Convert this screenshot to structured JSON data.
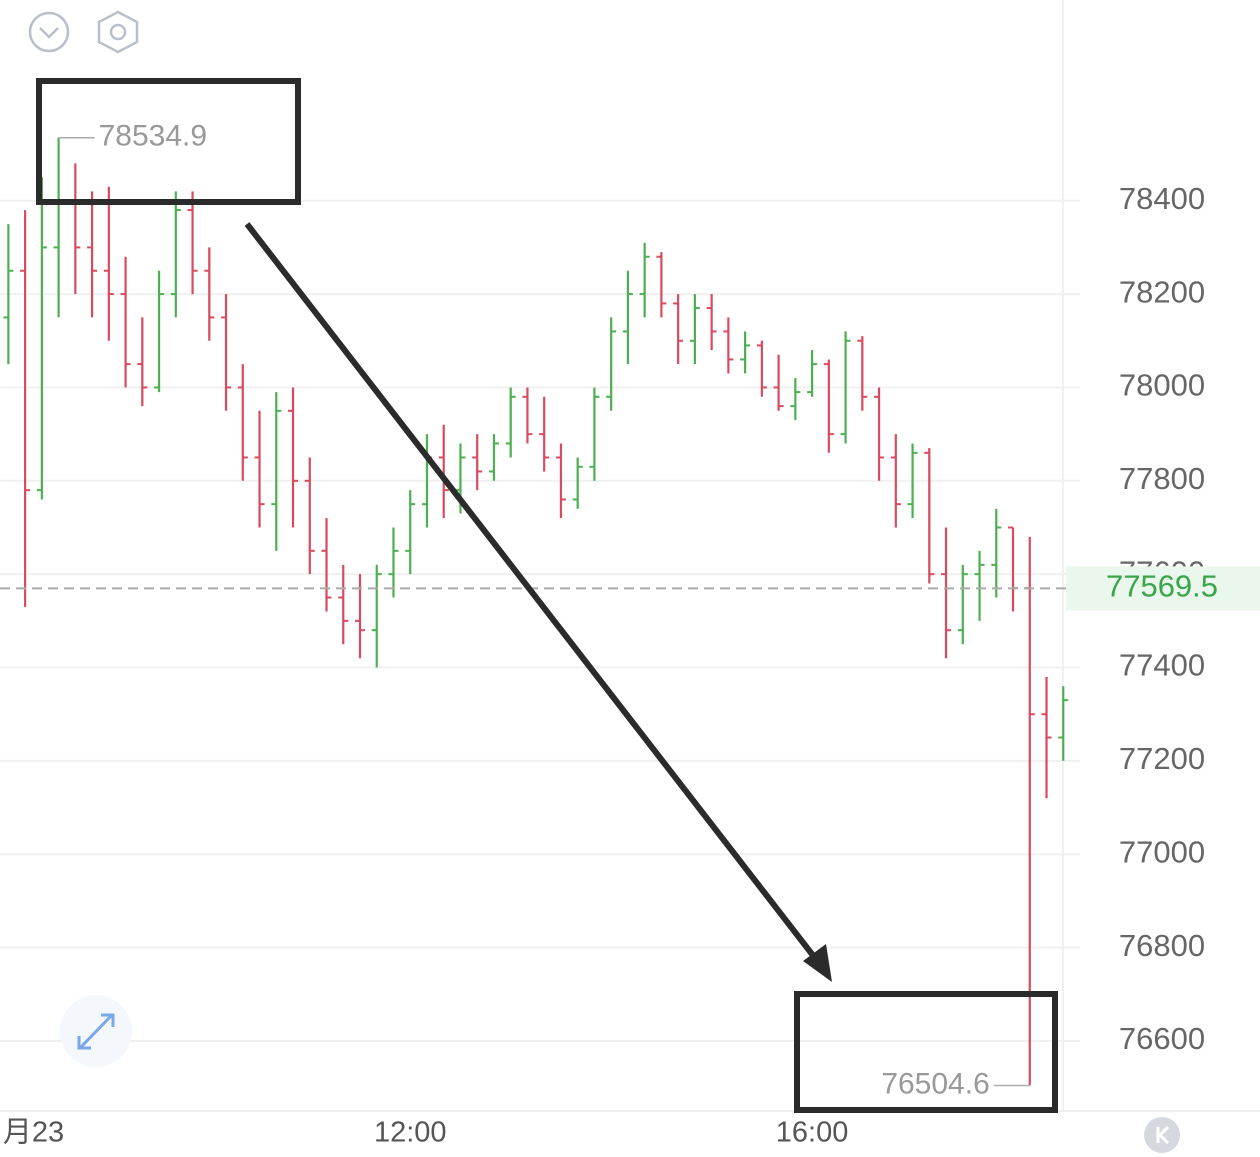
{
  "chart_data": {
    "type": "ohlc",
    "x": [
      480,
      490,
      500,
      510,
      520,
      530,
      540,
      550,
      560,
      570,
      580,
      590,
      600,
      610,
      620,
      630,
      640,
      650,
      660,
      670,
      680,
      690,
      700,
      710,
      720,
      730,
      740,
      750,
      760,
      770,
      780,
      790,
      800,
      810,
      820,
      830,
      840,
      850,
      860,
      870,
      880,
      890,
      900,
      910,
      920,
      930,
      940,
      950,
      960,
      970,
      980,
      990,
      1000,
      1010,
      1020,
      1030,
      1040,
      1050,
      1060,
      1070,
      1080,
      1090,
      1100,
      1110
    ],
    "open": [
      78150,
      78250,
      77780,
      78300,
      78400,
      78300,
      78250,
      78200,
      78050,
      78000,
      78200,
      78380,
      78250,
      78150,
      78000,
      77850,
      77750,
      77950,
      77800,
      77650,
      77550,
      77500,
      77480,
      77600,
      77650,
      77750,
      77850,
      77780,
      77850,
      77820,
      77880,
      77980,
      77900,
      77850,
      77760,
      77830,
      77980,
      78120,
      78200,
      78280,
      78180,
      78100,
      78170,
      78120,
      78060,
      78090,
      78000,
      77960,
      77990,
      78050,
      77900,
      78100,
      77980,
      77850,
      77750,
      77860,
      77600,
      77480,
      77600,
      77620,
      77700,
      77570,
      77300,
      77250
    ],
    "high": [
      78350,
      78380,
      78450,
      78534.9,
      78480,
      78420,
      78430,
      78280,
      78150,
      78250,
      78420,
      78420,
      78300,
      78200,
      78050,
      77950,
      77990,
      78000,
      77850,
      77720,
      77620,
      77600,
      77620,
      77700,
      77780,
      77900,
      77920,
      77880,
      77900,
      77900,
      78000,
      78000,
      77980,
      77880,
      77850,
      78000,
      78150,
      78250,
      78310,
      78290,
      78200,
      78200,
      78200,
      78150,
      78120,
      78100,
      78070,
      78020,
      78080,
      78060,
      78120,
      78110,
      78000,
      77900,
      77880,
      77870,
      77700,
      77620,
      77650,
      77740,
      77700,
      77680,
      77380,
      77360
    ],
    "low": [
      78050,
      77530,
      77760,
      78150,
      78200,
      78150,
      78100,
      78000,
      77960,
      77990,
      78150,
      78200,
      78100,
      77950,
      77800,
      77700,
      77650,
      77700,
      77600,
      77520,
      77450,
      77420,
      77400,
      77550,
      77600,
      77700,
      77720,
      77730,
      77780,
      77800,
      77850,
      77880,
      77820,
      77720,
      77740,
      77800,
      77950,
      78050,
      78150,
      78150,
      78050,
      78050,
      78080,
      78030,
      78030,
      77980,
      77950,
      77930,
      77980,
      77860,
      77880,
      77950,
      77800,
      77700,
      77720,
      77580,
      77420,
      77450,
      77500,
      77550,
      77520,
      76504.6,
      77120,
      77200
    ],
    "close": [
      78250,
      77780,
      78300,
      78400,
      78300,
      78250,
      78200,
      78050,
      78000,
      78200,
      78380,
      78250,
      78150,
      78000,
      77850,
      77750,
      77950,
      77800,
      77650,
      77550,
      77500,
      77480,
      77600,
      77650,
      77750,
      77850,
      77780,
      77850,
      77820,
      77880,
      77980,
      77900,
      77850,
      77760,
      77830,
      77980,
      78120,
      78200,
      78280,
      78180,
      78100,
      78170,
      78120,
      78060,
      78090,
      78000,
      77960,
      77990,
      78050,
      77900,
      78100,
      77980,
      77850,
      77750,
      77860,
      77600,
      77480,
      77600,
      77620,
      77700,
      77570,
      77300,
      77250,
      77330
    ],
    "up_color": "#4caf50",
    "down_color": "#d94a5f",
    "xlim": [
      475,
      1120
    ],
    "xticks": [
      {
        "value": 495,
        "label": "月23"
      },
      {
        "value": 720,
        "label": "12:00"
      },
      {
        "value": 960,
        "label": "16:00"
      }
    ],
    "ylim": [
      76450,
      78830
    ],
    "yticks": [
      76600,
      76800,
      77000,
      77200,
      77400,
      77600,
      77800,
      78000,
      78200,
      78400
    ],
    "grid": true,
    "last_price": 77569.5,
    "high_marker": 78534.9,
    "low_marker": 76504.6
  }
}
